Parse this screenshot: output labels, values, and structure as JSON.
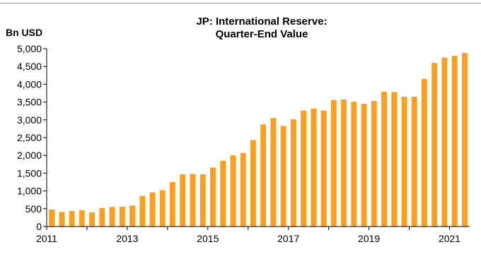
{
  "chart_data": {
    "type": "bar",
    "title": [
      "JP: International Reserve:",
      "Quarter-End Value"
    ],
    "ylabel": "Bn USD",
    "ylim": [
      0,
      5000
    ],
    "yticks": [
      0,
      500,
      1000,
      1500,
      2000,
      2500,
      3000,
      3500,
      4000,
      4500,
      5000
    ],
    "ytick_labels": [
      "0",
      "500",
      "1,000",
      "1,500",
      "2,000",
      "2,500",
      "3,000",
      "3,500",
      "4,000",
      "4,500",
      "5,000"
    ],
    "xtick_labels": [
      "2011",
      "2013",
      "2015",
      "2017",
      "2019",
      "2021"
    ],
    "x_start_year": 2011,
    "x_end_year": 2021.5,
    "grid": false,
    "bar_color": "#FF9D1C",
    "categories": [
      "2011Q1",
      "2011Q2",
      "2011Q3",
      "2011Q4",
      "2012Q1",
      "2012Q2",
      "2012Q3",
      "2012Q4",
      "2013Q1",
      "2013Q2",
      "2013Q3",
      "2013Q4",
      "2014Q1",
      "2014Q2",
      "2014Q3",
      "2014Q4",
      "2015Q1",
      "2015Q2",
      "2015Q3",
      "2015Q4",
      "2016Q1",
      "2016Q2",
      "2016Q3",
      "2016Q4",
      "2017Q1",
      "2017Q2",
      "2017Q3",
      "2017Q4",
      "2018Q1",
      "2018Q2",
      "2018Q3",
      "2018Q4",
      "2019Q1",
      "2019Q2",
      "2019Q3",
      "2019Q4",
      "2020Q1",
      "2020Q2",
      "2020Q3",
      "2020Q4",
      "2021Q1",
      "2021Q2"
    ],
    "values": [
      480,
      410,
      440,
      460,
      400,
      520,
      550,
      560,
      590,
      860,
      960,
      1020,
      1250,
      1470,
      1480,
      1470,
      1660,
      1850,
      2000,
      2070,
      2430,
      2870,
      3050,
      2830,
      3020,
      3260,
      3320,
      3260,
      3560,
      3570,
      3510,
      3450,
      3530,
      3790,
      3780,
      3650,
      3650,
      4150,
      4600,
      4750,
      4800,
      4880
    ]
  }
}
